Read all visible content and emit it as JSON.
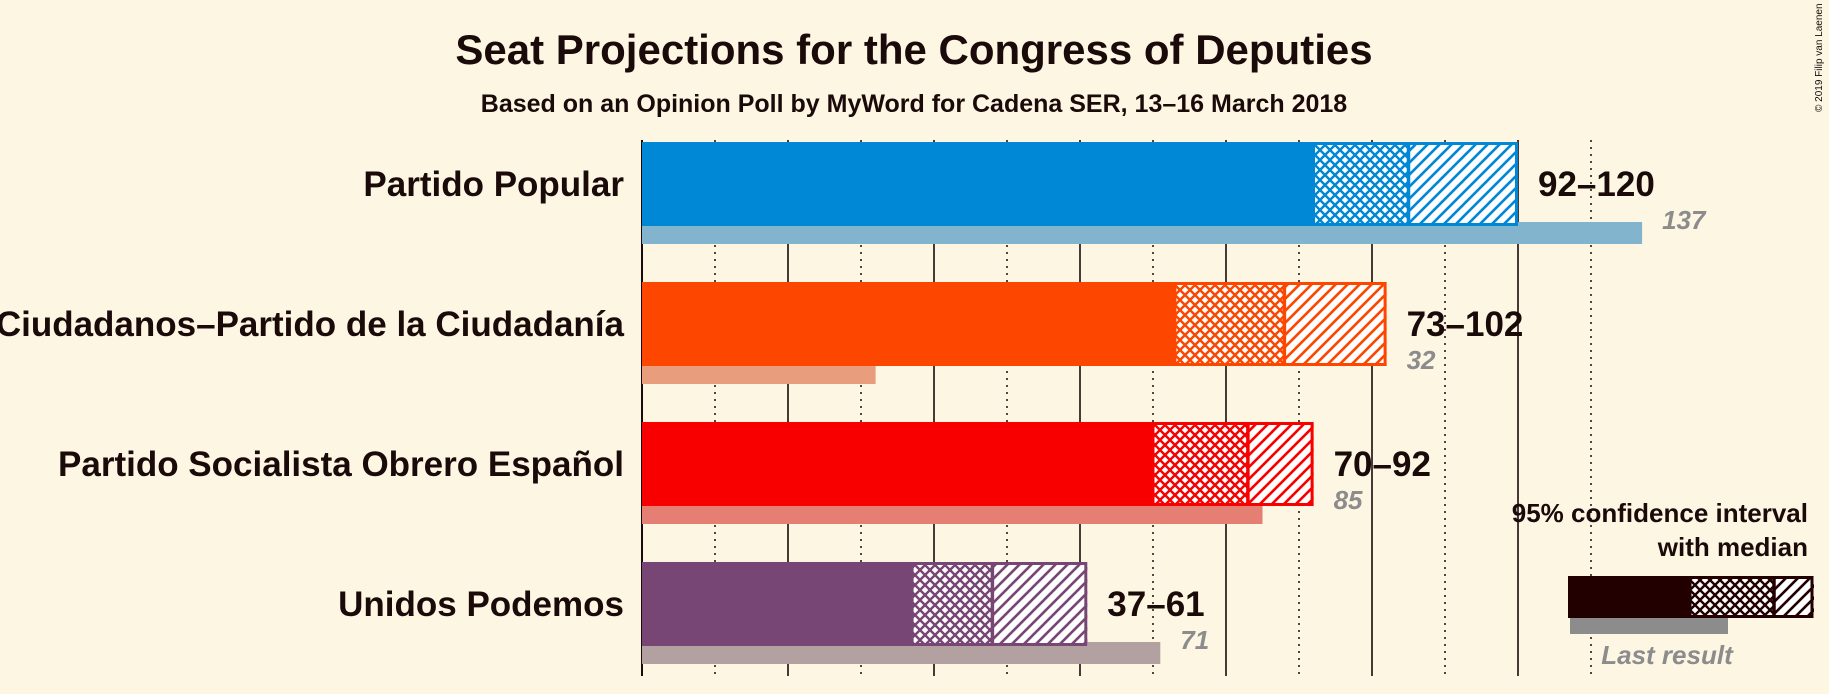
{
  "title": "Seat Projections for the Congress of Deputies",
  "subtitle": "Based on an Opinion Poll by MyWord for Cadena SER, 13–16 March 2018",
  "copyright": "© 2019 Filip van Laenen",
  "legend": {
    "ci_line1": "95% confidence interval",
    "ci_line2": "with median",
    "last_result": "Last result"
  },
  "chart_data": {
    "type": "bar",
    "orientation": "horizontal",
    "x_range": [
      0,
      145
    ],
    "major_gridline_every": 20,
    "minor_gridline_every": 10,
    "parties": [
      {
        "name": "Partido Popular",
        "low": 92,
        "median": 105,
        "high": 120,
        "last": 137,
        "range_label": "92–120",
        "last_label": "137",
        "color": "#0087d5",
        "last_color": "#83b4cd"
      },
      {
        "name": "Ciudadanos–Partido de la Ciudadanía",
        "low": 73,
        "median": 88,
        "high": 102,
        "last": 32,
        "range_label": "73–102",
        "last_label": "32",
        "color": "#fd4600",
        "last_color": "#e89e7c"
      },
      {
        "name": "Partido Socialista Obrero Español",
        "low": 70,
        "median": 83,
        "high": 92,
        "last": 85,
        "range_label": "70–92",
        "last_label": "85",
        "color": "#f90000",
        "last_color": "#e67f73"
      },
      {
        "name": "Unidos Podemos",
        "low": 37,
        "median": 48,
        "high": 61,
        "last": 71,
        "range_label": "37–61",
        "last_label": "71",
        "color": "#774675",
        "last_color": "#b3a1a2"
      }
    ]
  }
}
